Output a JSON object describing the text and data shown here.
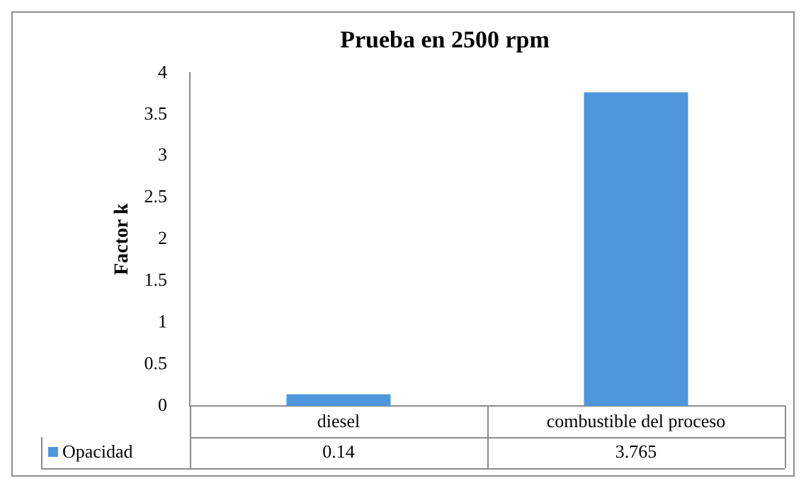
{
  "chart_data": {
    "type": "bar",
    "title": "Prueba en 2500 rpm",
    "ylabel": "Factor k",
    "categories": [
      "diesel",
      "combustible del proceso"
    ],
    "series": [
      {
        "name": "Opacidad",
        "color": "#4f97dc",
        "values": [
          0.14,
          3.765
        ]
      }
    ],
    "ylim": [
      0,
      4
    ],
    "yticks": [
      0,
      0.5,
      1,
      1.5,
      2,
      2.5,
      3,
      3.5,
      4
    ],
    "data_labels": true,
    "legend": "bottom",
    "grid": false
  }
}
